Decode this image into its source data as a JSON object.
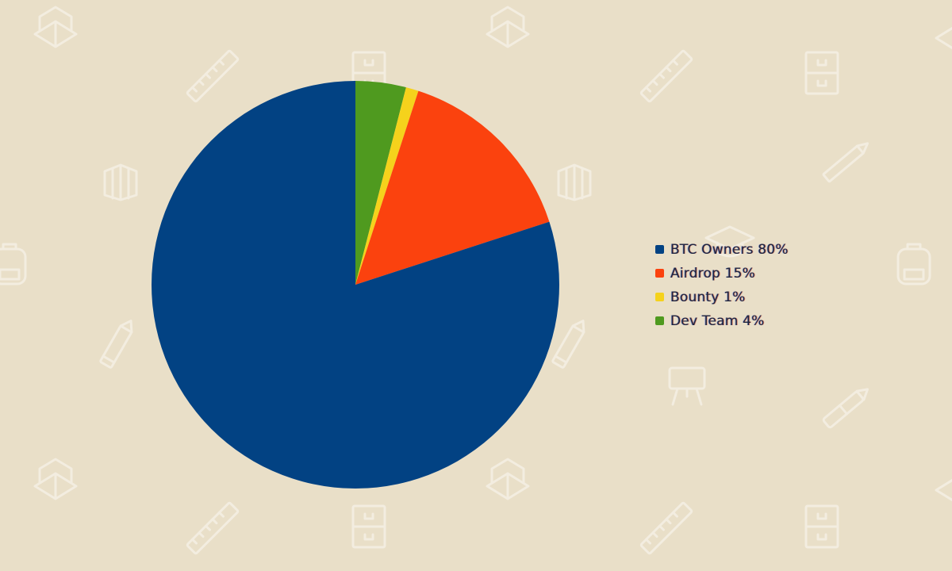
{
  "colors": {
    "background": "#e9dfc8",
    "pattern": "#f3ede0"
  },
  "chart_data": {
    "type": "pie",
    "title": "",
    "start_angle_deg": 0,
    "direction": "clockwise",
    "legend_position": "right",
    "slices": [
      {
        "label": "Dev Team 4%",
        "value": 4,
        "color": "#4f9a1f"
      },
      {
        "label": "Bounty 1%",
        "value": 1,
        "color": "#f5d21c"
      },
      {
        "label": "Airdrop 15%",
        "value": 15,
        "color": "#fb420e"
      },
      {
        "label": "BTC Owners 80%",
        "value": 80,
        "color": "#024283"
      }
    ],
    "legend": [
      {
        "label": "BTC Owners 80%",
        "color": "#024283"
      },
      {
        "label": "Airdrop 15%",
        "color": "#fb420e"
      },
      {
        "label": "Bounty 1%",
        "color": "#f5d21c"
      },
      {
        "label": "Dev Team 4%",
        "color": "#4f9a1f"
      }
    ]
  }
}
